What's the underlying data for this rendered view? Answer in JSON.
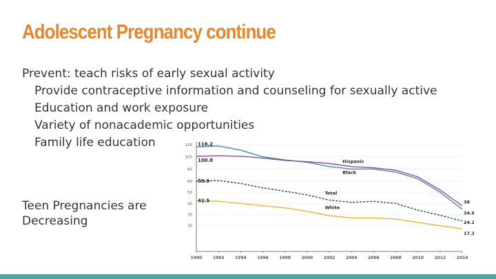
{
  "slide": {
    "title": "Adolescent Pregnancy continue",
    "bullets": [
      {
        "text": "Prevent: teach risks of early sexual activity",
        "level": 0
      },
      {
        "text": "Provide contraceptive information and counseling for sexually active",
        "level": 1
      },
      {
        "text": "Education and work exposure",
        "level": 1
      },
      {
        "text": "Variety of nonacademic opportunities",
        "level": 1
      },
      {
        "text": "Family life education",
        "level": 1
      }
    ],
    "side_text": "Teen Pregnancies are Decreasing"
  },
  "colors": {
    "title": "#e8862a",
    "bar": "#4fa6a2",
    "text": "#333333",
    "axis": "#555555",
    "grid": "#e4e4e4"
  },
  "chart_data": {
    "type": "line",
    "title": "",
    "xlabel": "",
    "ylabel": "",
    "x": [
      1990,
      1992,
      1994,
      1996,
      1998,
      2000,
      2002,
      2004,
      2006,
      2008,
      2010,
      2012,
      2014
    ],
    "x_ticks": [
      "1990",
      "1992",
      "1994",
      "1996",
      "1998",
      "2000",
      "2002",
      "2004",
      "2006",
      "2008",
      "2010",
      "2012",
      "2014"
    ],
    "y_ticks": [
      "20",
      "30",
      "40",
      "50",
      "60",
      "80",
      "100",
      "120"
    ],
    "grid": false,
    "series": [
      {
        "name": "Black",
        "color": "#3e8aa6",
        "dash": "solid",
        "values": [
          116.2,
          118,
          111,
          100,
          95,
          91,
          84,
          80,
          80,
          75,
          64,
          50,
          34.9
        ],
        "start_label": "116.2",
        "end_label": "34.9"
      },
      {
        "name": "Hispanic",
        "color": "#8a4f93",
        "dash": "solid",
        "values": [
          100.8,
          102,
          101,
          98,
          94,
          92,
          89,
          84,
          82,
          78,
          67,
          52,
          38
        ],
        "start_label": "100.8",
        "end_label": "38"
      },
      {
        "name": "Total",
        "color": "#1f3f6e",
        "dash": "dashed",
        "values": [
          59.9,
          61,
          58,
          54,
          51,
          47.7,
          43,
          41,
          41.9,
          40,
          34,
          29.4,
          24.2
        ],
        "start_label": "59.9",
        "end_label": "24.2"
      },
      {
        "name": "White",
        "color": "#e8b82a",
        "dash": "solid",
        "values": [
          42.5,
          42,
          40,
          38,
          36,
          33,
          29,
          27,
          27,
          26,
          23,
          20,
          17.3
        ],
        "start_label": "42.5",
        "end_label": "17.3"
      }
    ]
  }
}
